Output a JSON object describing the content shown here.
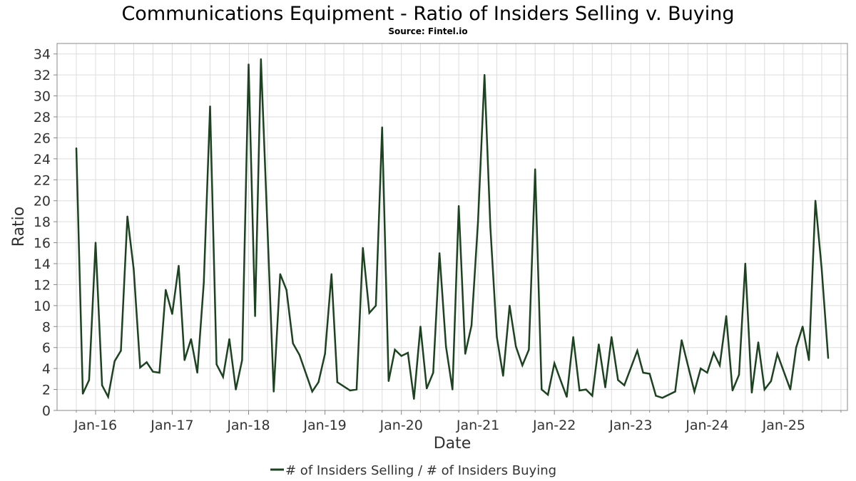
{
  "chart_data": {
    "type": "line",
    "title": "Communications Equipment - Ratio of Insiders Selling v. Buying",
    "subtitle": "Source: Fintel.io",
    "xlabel": "Date",
    "ylabel": "Ratio",
    "ylim": [
      0,
      35
    ],
    "yticks": [
      0,
      2,
      4,
      6,
      8,
      10,
      12,
      14,
      16,
      18,
      20,
      22,
      24,
      26,
      28,
      30,
      32,
      34
    ],
    "x_range": [
      "2015-07-01",
      "2025-11-01"
    ],
    "xticks": [
      {
        "date": "2016-01-01",
        "label": "Jan-16"
      },
      {
        "date": "2017-01-01",
        "label": "Jan-17"
      },
      {
        "date": "2018-01-01",
        "label": "Jan-18"
      },
      {
        "date": "2019-01-01",
        "label": "Jan-19"
      },
      {
        "date": "2020-01-01",
        "label": "Jan-20"
      },
      {
        "date": "2021-01-01",
        "label": "Jan-21"
      },
      {
        "date": "2022-01-01",
        "label": "Jan-22"
      },
      {
        "date": "2023-01-01",
        "label": "Jan-23"
      },
      {
        "date": "2024-01-01",
        "label": "Jan-24"
      },
      {
        "date": "2025-01-01",
        "label": "Jan-25"
      }
    ],
    "grid": true,
    "legend_position": "bottom",
    "colors": {
      "line": "#1c4220",
      "plot_border": "#888888",
      "grid": "#dddddd"
    },
    "series": [
      {
        "name": "# of Insiders Selling / # of Insiders Buying",
        "points": [
          [
            "2015-10-01",
            25.0
          ],
          [
            "2015-11-01",
            1.6
          ],
          [
            "2015-12-01",
            2.9
          ],
          [
            "2016-01-01",
            16.0
          ],
          [
            "2016-02-01",
            2.4
          ],
          [
            "2016-03-01",
            1.3
          ],
          [
            "2016-04-01",
            4.7
          ],
          [
            "2016-05-01",
            5.7
          ],
          [
            "2016-06-01",
            18.5
          ],
          [
            "2016-07-01",
            13.5
          ],
          [
            "2016-08-01",
            4.1
          ],
          [
            "2016-09-01",
            4.6
          ],
          [
            "2016-10-01",
            3.7
          ],
          [
            "2016-11-01",
            3.6
          ],
          [
            "2016-12-01",
            11.5
          ],
          [
            "2017-01-01",
            9.2
          ],
          [
            "2017-02-01",
            13.8
          ],
          [
            "2017-03-01",
            4.8
          ],
          [
            "2017-04-01",
            6.8
          ],
          [
            "2017-05-01",
            3.6
          ],
          [
            "2017-06-01",
            12.2
          ],
          [
            "2017-07-01",
            29.0
          ],
          [
            "2017-08-01",
            4.4
          ],
          [
            "2017-09-01",
            3.2
          ],
          [
            "2017-10-01",
            6.8
          ],
          [
            "2017-11-01",
            2.0
          ],
          [
            "2017-12-01",
            4.8
          ],
          [
            "2018-01-01",
            33.0
          ],
          [
            "2018-02-01",
            9.0
          ],
          [
            "2018-03-01",
            33.5
          ],
          [
            "2018-04-01",
            17.5
          ],
          [
            "2018-05-01",
            1.8
          ],
          [
            "2018-06-01",
            13.0
          ],
          [
            "2018-07-01",
            11.5
          ],
          [
            "2018-08-01",
            6.4
          ],
          [
            "2018-09-01",
            5.3
          ],
          [
            "2018-11-01",
            1.8
          ],
          [
            "2018-12-01",
            2.7
          ],
          [
            "2019-01-01",
            5.4
          ],
          [
            "2019-02-01",
            13.0
          ],
          [
            "2019-03-01",
            2.7
          ],
          [
            "2019-05-01",
            1.9
          ],
          [
            "2019-06-01",
            2.0
          ],
          [
            "2019-07-01",
            15.5
          ],
          [
            "2019-08-01",
            9.3
          ],
          [
            "2019-09-01",
            10.0
          ],
          [
            "2019-10-01",
            27.0
          ],
          [
            "2019-11-01",
            2.8
          ],
          [
            "2019-12-01",
            5.8
          ],
          [
            "2020-01-01",
            5.2
          ],
          [
            "2020-02-01",
            5.5
          ],
          [
            "2020-03-01",
            1.1
          ],
          [
            "2020-04-01",
            8.0
          ],
          [
            "2020-05-01",
            2.1
          ],
          [
            "2020-06-01",
            3.6
          ],
          [
            "2020-07-01",
            15.0
          ],
          [
            "2020-08-01",
            6.1
          ],
          [
            "2020-09-01",
            2.0
          ],
          [
            "2020-10-01",
            19.5
          ],
          [
            "2020-11-01",
            5.4
          ],
          [
            "2020-12-01",
            8.1
          ],
          [
            "2021-01-01",
            18.0
          ],
          [
            "2021-02-01",
            32.0
          ],
          [
            "2021-03-01",
            17.5
          ],
          [
            "2021-04-01",
            7.0
          ],
          [
            "2021-05-01",
            3.3
          ],
          [
            "2021-06-01",
            10.0
          ],
          [
            "2021-07-01",
            6.1
          ],
          [
            "2021-08-01",
            4.3
          ],
          [
            "2021-09-01",
            5.8
          ],
          [
            "2021-10-01",
            23.0
          ],
          [
            "2021-11-01",
            2.0
          ],
          [
            "2021-12-01",
            1.5
          ],
          [
            "2022-01-01",
            4.5
          ],
          [
            "2022-02-01",
            2.8
          ],
          [
            "2022-03-01",
            1.3
          ],
          [
            "2022-04-01",
            7.0
          ],
          [
            "2022-05-01",
            1.9
          ],
          [
            "2022-06-01",
            2.0
          ],
          [
            "2022-07-01",
            1.4
          ],
          [
            "2022-08-01",
            6.3
          ],
          [
            "2022-09-01",
            2.2
          ],
          [
            "2022-10-01",
            7.0
          ],
          [
            "2022-11-01",
            2.9
          ],
          [
            "2022-12-01",
            2.4
          ],
          [
            "2023-02-01",
            5.7
          ],
          [
            "2023-03-01",
            3.6
          ],
          [
            "2023-04-01",
            3.5
          ],
          [
            "2023-05-01",
            1.4
          ],
          [
            "2023-06-01",
            1.2
          ],
          [
            "2023-08-01",
            1.8
          ],
          [
            "2023-09-01",
            6.7
          ],
          [
            "2023-11-01",
            1.8
          ],
          [
            "2023-12-01",
            4.0
          ],
          [
            "2024-01-01",
            3.6
          ],
          [
            "2024-02-01",
            5.5
          ],
          [
            "2024-03-01",
            4.3
          ],
          [
            "2024-04-01",
            9.0
          ],
          [
            "2024-05-01",
            1.9
          ],
          [
            "2024-06-01",
            3.4
          ],
          [
            "2024-07-01",
            14.0
          ],
          [
            "2024-08-01",
            1.7
          ],
          [
            "2024-09-01",
            6.5
          ],
          [
            "2024-10-01",
            2.0
          ],
          [
            "2024-11-01",
            2.8
          ],
          [
            "2024-12-01",
            5.4
          ],
          [
            "2025-02-01",
            2.0
          ],
          [
            "2025-03-01",
            6.0
          ],
          [
            "2025-04-01",
            8.0
          ],
          [
            "2025-05-01",
            4.8
          ],
          [
            "2025-06-01",
            20.0
          ],
          [
            "2025-07-01",
            13.5
          ],
          [
            "2025-08-01",
            5.0
          ]
        ]
      }
    ]
  }
}
